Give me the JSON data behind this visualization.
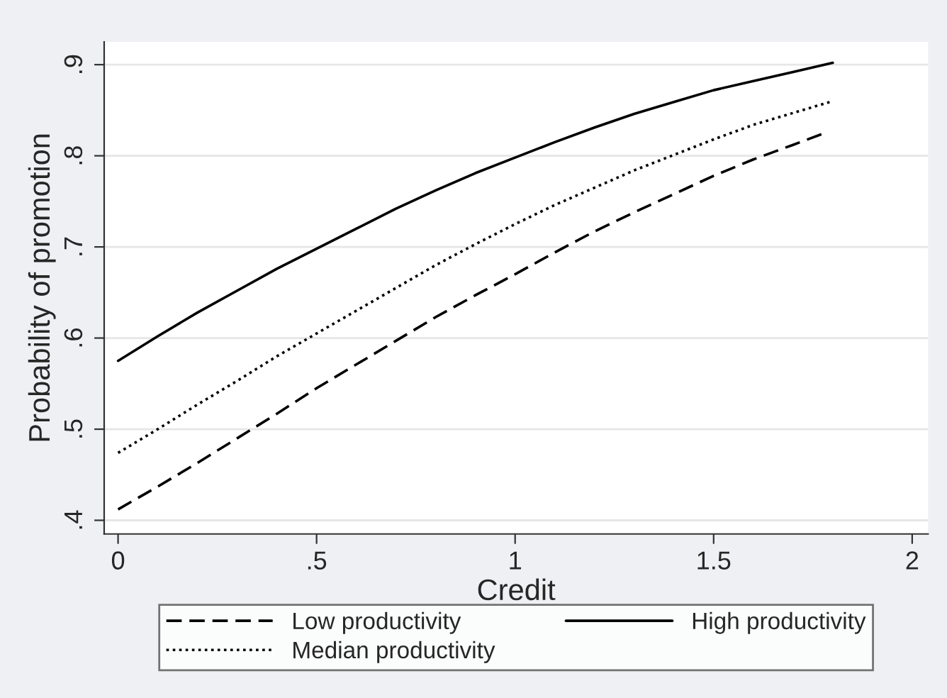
{
  "chart_data": {
    "type": "line",
    "xlabel": "Credit",
    "ylabel": "Probability of promotion",
    "x": [
      0,
      0.1,
      0.2,
      0.3,
      0.4,
      0.5,
      0.6,
      0.7,
      0.8,
      0.9,
      1.0,
      1.1,
      1.2,
      1.3,
      1.4,
      1.5,
      1.6,
      1.7,
      1.8
    ],
    "series": [
      {
        "name": "Low productivity",
        "color": "#000000",
        "line_style": "dashed",
        "x": [
          0,
          0.1,
          0.2,
          0.3,
          0.4,
          0.5,
          0.6,
          0.7,
          0.8,
          0.9,
          1.0,
          1.1,
          1.2,
          1.3,
          1.4,
          1.5,
          1.6,
          1.7,
          1.78
        ],
        "values": [
          0.412,
          0.437,
          0.463,
          0.49,
          0.517,
          0.545,
          0.571,
          0.597,
          0.623,
          0.647,
          0.67,
          0.694,
          0.717,
          0.738,
          0.758,
          0.778,
          0.796,
          0.812,
          0.825
        ]
      },
      {
        "name": "Median productivity",
        "color": "#000000",
        "line_style": "dotted",
        "values": [
          0.474,
          0.5,
          0.527,
          0.553,
          0.58,
          0.605,
          0.63,
          0.655,
          0.68,
          0.703,
          0.725,
          0.746,
          0.765,
          0.784,
          0.801,
          0.818,
          0.834,
          0.847,
          0.86
        ]
      },
      {
        "name": "High productivity",
        "color": "#000000",
        "line_style": "solid",
        "values": [
          0.575,
          0.602,
          0.628,
          0.652,
          0.676,
          0.698,
          0.72,
          0.742,
          0.762,
          0.781,
          0.798,
          0.815,
          0.831,
          0.846,
          0.859,
          0.872,
          0.882,
          0.892,
          0.902
        ]
      }
    ],
    "xlim": [
      -0.035,
      2.04
    ],
    "ylim": [
      0.385,
      0.925
    ],
    "xticks": [
      0,
      {
        "value": 0.5,
        "label": ".5"
      },
      1,
      1.5,
      2
    ],
    "yticks": [
      {
        "value": 0.4,
        "label": ".4"
      },
      {
        "value": 0.5,
        "label": ".5"
      },
      {
        "value": 0.6,
        "label": ".6"
      },
      {
        "value": 0.7,
        "label": ".7"
      },
      {
        "value": 0.8,
        "label": ".8"
      },
      {
        "value": 0.9,
        "label": ".9"
      }
    ],
    "grid": "y",
    "legend": "bottom",
    "marker": "none"
  }
}
